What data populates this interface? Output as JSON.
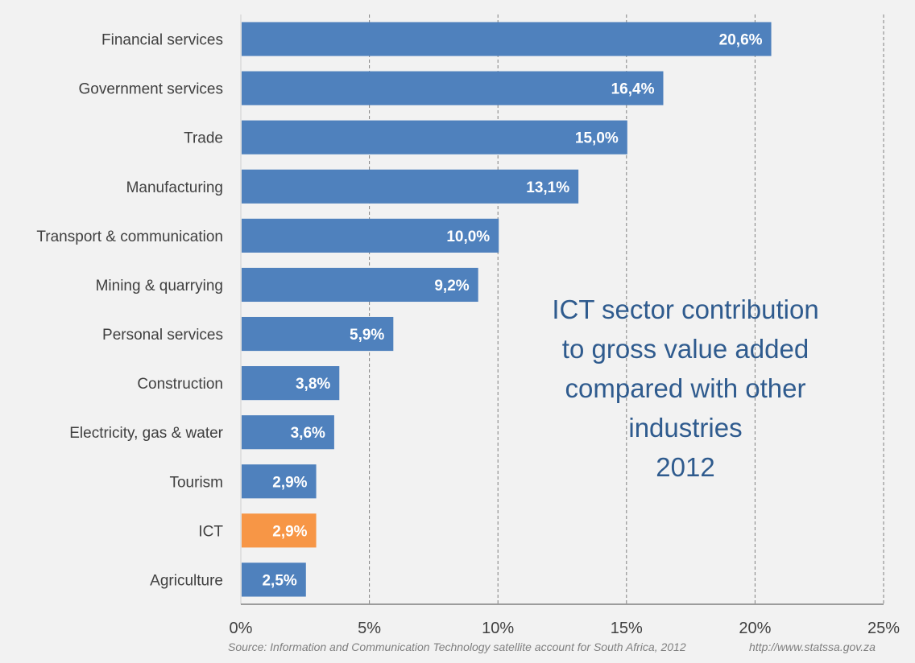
{
  "chart_data": {
    "type": "bar",
    "orientation": "horizontal",
    "title": "ICT sector contribution to gross value added compared with other industries 2012",
    "annotation_lines": [
      "ICT sector contribution",
      "to gross value added",
      "compared with other",
      "industries",
      "2012"
    ],
    "categories": [
      "Financial services",
      "Government services",
      "Trade",
      "Manufacturing",
      "Transport & communication",
      "Mining & quarrying",
      "Personal services",
      "Construction",
      "Electricity, gas & water",
      "Tourism",
      "ICT",
      "Agriculture"
    ],
    "values": [
      20.6,
      16.4,
      15.0,
      13.1,
      10.0,
      9.2,
      5.9,
      3.8,
      3.6,
      2.9,
      2.9,
      2.5
    ],
    "value_labels": [
      "20,6%",
      "16,4%",
      "15,0%",
      "13,1%",
      "10,0%",
      "9,2%",
      "5,9%",
      "3,8%",
      "3,6%",
      "2,9%",
      "2,9%",
      "2,5%"
    ],
    "highlight_category": "ICT",
    "xlabel": "",
    "ylabel": "",
    "xlim": [
      0,
      25
    ],
    "xticks": [
      0,
      5,
      10,
      15,
      20,
      25
    ],
    "xtick_labels": [
      "0%",
      "5%",
      "10%",
      "15%",
      "20%",
      "25%"
    ],
    "grid": "vertical dashed",
    "legend": "none",
    "colors": {
      "bar": "#4f81bd",
      "highlight": "#f79646",
      "annotation_text": "#2f5b8e",
      "grid": "#808080",
      "background": "#f2f2f2"
    }
  },
  "footer": {
    "source": "Source: Information and Communication Technology satellite account for South Africa, 2012",
    "url": "http://www.statssa.gov.za"
  }
}
